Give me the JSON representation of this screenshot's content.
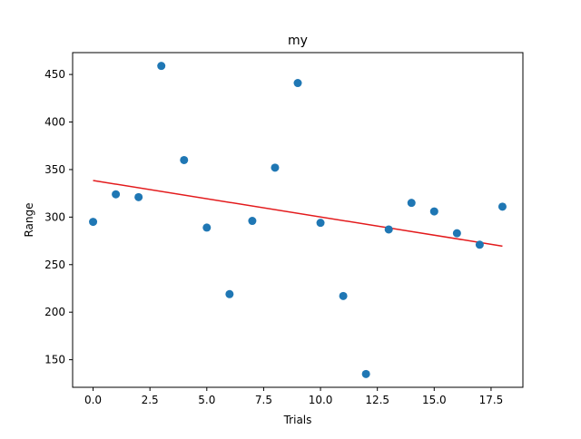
{
  "chart_data": {
    "type": "scatter",
    "title": "my",
    "xlabel": "Trials",
    "ylabel": "Range",
    "xlim": [
      -0.9,
      18.9
    ],
    "ylim": [
      121,
      473
    ],
    "xticks": [
      0.0,
      2.5,
      5.0,
      7.5,
      10.0,
      12.5,
      15.0,
      17.5
    ],
    "xtick_labels": [
      "0.0",
      "2.5",
      "5.0",
      "7.5",
      "10.0",
      "12.5",
      "15.0",
      "17.5"
    ],
    "yticks": [
      150,
      200,
      250,
      300,
      350,
      400,
      450
    ],
    "ytick_labels": [
      "150",
      "200",
      "250",
      "300",
      "350",
      "400",
      "450"
    ],
    "grid": false,
    "series": [
      {
        "type": "scatter",
        "color": "#1f77b4",
        "x": [
          0,
          1,
          2,
          3,
          4,
          5,
          6,
          7,
          8,
          9,
          10,
          11,
          12,
          13,
          14,
          15,
          16,
          17,
          18
        ],
        "y": [
          295,
          324,
          321,
          459,
          360,
          289,
          219,
          296,
          352,
          441,
          294,
          217,
          135,
          287,
          315,
          306,
          283,
          271,
          311
        ]
      },
      {
        "type": "line",
        "color": "#e31a1c",
        "x": [
          0,
          18
        ],
        "y": [
          338.5,
          269.5
        ]
      }
    ]
  }
}
